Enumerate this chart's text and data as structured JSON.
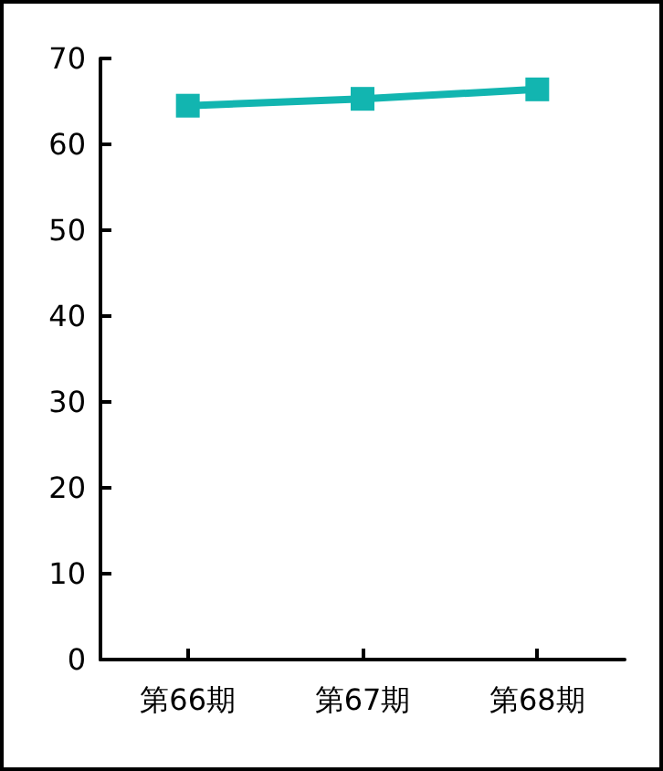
{
  "chart_data": {
    "type": "line",
    "categories": [
      "第66期",
      "第67期",
      "第68期"
    ],
    "series": [
      {
        "color": "#12b5b0",
        "values": [
          64.5,
          65.3,
          66.4
        ]
      }
    ],
    "ylim": [
      0,
      70
    ],
    "yticks": [
      0,
      10,
      20,
      30,
      40,
      50,
      60,
      70
    ],
    "grid": false,
    "marker": "square",
    "line_style": "solid"
  }
}
